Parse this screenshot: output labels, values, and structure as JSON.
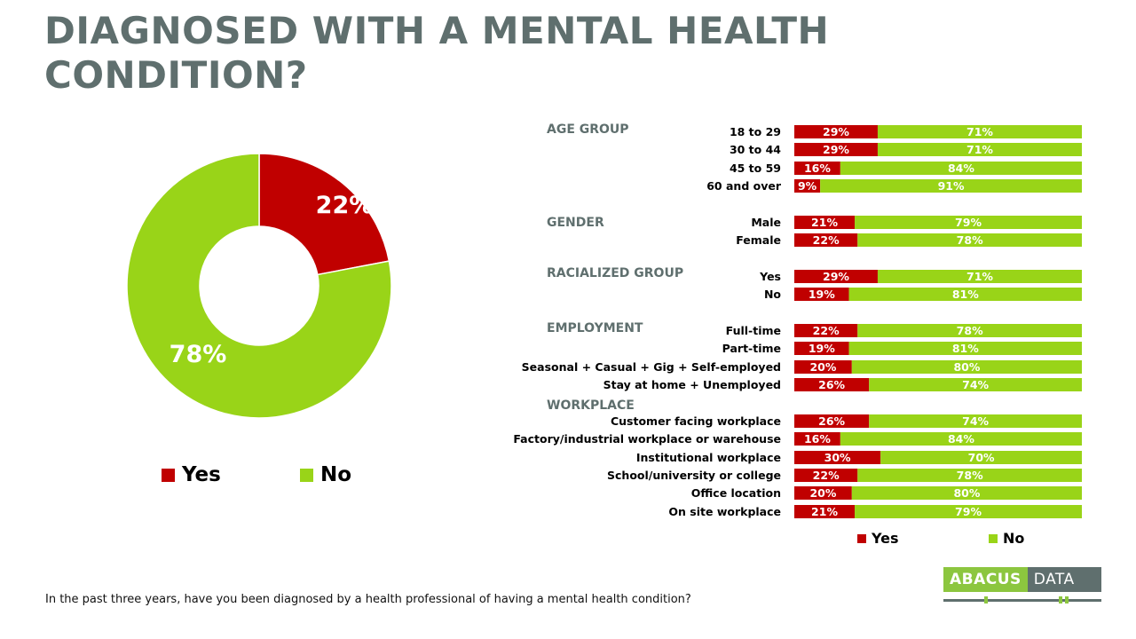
{
  "title_lines": [
    "DIAGNOSED WITH A MENTAL HEALTH",
    "CONDITION?"
  ],
  "colors": {
    "yes": "#c00000",
    "no": "#99d418",
    "title": "#5f6f6e",
    "group_label": "#5f6f6e"
  },
  "legend": {
    "yes": "Yes",
    "no": "No"
  },
  "footnote": "In the past three years, have you been diagnosed by a health professional of having a mental health condition?",
  "logo": {
    "left": "ABACUS",
    "right": "DATA"
  },
  "chart_data": [
    {
      "type": "pie",
      "donut": true,
      "categories": [
        "Yes",
        "No"
      ],
      "values": [
        22,
        78
      ],
      "labels": [
        "22%",
        "78%"
      ],
      "legend_position": "bottom"
    },
    {
      "type": "bar",
      "stacked": true,
      "orientation": "horizontal",
      "series": [
        {
          "name": "Yes"
        },
        {
          "name": "No"
        }
      ],
      "legend_position": "bottom",
      "groups": [
        {
          "label": "AGE GROUP",
          "rows": [
            {
              "label": "18 to 29",
              "yes": 29,
              "no": 71
            },
            {
              "label": "30 to 44",
              "yes": 29,
              "no": 71
            },
            {
              "label": "45 to 59",
              "yes": 16,
              "no": 84
            },
            {
              "label": "60 and over",
              "yes": 9,
              "no": 91
            }
          ]
        },
        {
          "label": "GENDER",
          "rows": [
            {
              "label": "Male",
              "yes": 21,
              "no": 79
            },
            {
              "label": "Female",
              "yes": 22,
              "no": 78
            }
          ]
        },
        {
          "label": "RACIALIZED GROUP",
          "rows": [
            {
              "label": "Yes",
              "yes": 29,
              "no": 71
            },
            {
              "label": "No",
              "yes": 19,
              "no": 81
            }
          ]
        },
        {
          "label": "EMPLOYMENT",
          "rows": [
            {
              "label": "Full-time",
              "yes": 22,
              "no": 78
            },
            {
              "label": "Part-time",
              "yes": 19,
              "no": 81
            },
            {
              "label": "Seasonal + Casual + Gig + Self-employed",
              "yes": 20,
              "no": 80
            },
            {
              "label": "Stay at home + Unemployed",
              "yes": 26,
              "no": 74
            }
          ]
        },
        {
          "label": "WORKPLACE",
          "rows": [
            {
              "label": "Customer facing workplace",
              "yes": 26,
              "no": 74
            },
            {
              "label": "Factory/industrial workplace or warehouse",
              "yes": 16,
              "no": 84
            },
            {
              "label": "Institutional workplace",
              "yes": 30,
              "no": 70
            },
            {
              "label": "School/university or college",
              "yes": 22,
              "no": 78
            },
            {
              "label": "Office location",
              "yes": 20,
              "no": 80
            },
            {
              "label": "On site workplace",
              "yes": 21,
              "no": 79
            }
          ]
        }
      ]
    }
  ]
}
